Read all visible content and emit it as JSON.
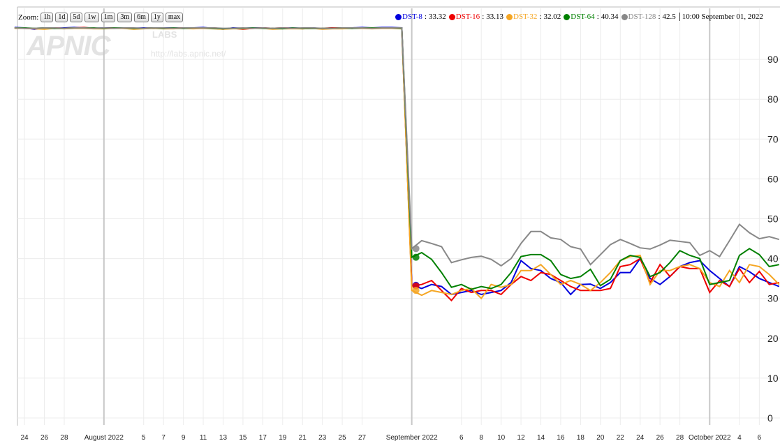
{
  "zoom": {
    "label": "Zoom:",
    "options": [
      "1h",
      "1d",
      "5d",
      "1w",
      "1m",
      "3m",
      "6m",
      "1y",
      "max"
    ]
  },
  "watermark": {
    "logo": "APNIC",
    "sub": "LABS",
    "url": "http://labs.apnic.net/"
  },
  "legend": {
    "separator": ":",
    "time": "10:00 September 01, 2022"
  },
  "chart_data": {
    "type": "line",
    "x": [
      "2022-07-23",
      "2022-07-24",
      "2022-07-25",
      "2022-07-26",
      "2022-07-27",
      "2022-07-28",
      "2022-07-29",
      "2022-07-30",
      "2022-07-31",
      "2022-08-01",
      "2022-08-02",
      "2022-08-03",
      "2022-08-04",
      "2022-08-05",
      "2022-08-06",
      "2022-08-07",
      "2022-08-08",
      "2022-08-09",
      "2022-08-10",
      "2022-08-11",
      "2022-08-12",
      "2022-08-13",
      "2022-08-14",
      "2022-08-15",
      "2022-08-16",
      "2022-08-17",
      "2022-08-18",
      "2022-08-19",
      "2022-08-20",
      "2022-08-21",
      "2022-08-22",
      "2022-08-23",
      "2022-08-24",
      "2022-08-25",
      "2022-08-26",
      "2022-08-27",
      "2022-08-28",
      "2022-08-29",
      "2022-08-30",
      "2022-08-31",
      "2022-09-01",
      "2022-09-02",
      "2022-09-03",
      "2022-09-04",
      "2022-09-05",
      "2022-09-06",
      "2022-09-07",
      "2022-09-08",
      "2022-09-09",
      "2022-09-10",
      "2022-09-11",
      "2022-09-12",
      "2022-09-13",
      "2022-09-14",
      "2022-09-15",
      "2022-09-16",
      "2022-09-17",
      "2022-09-18",
      "2022-09-19",
      "2022-09-20",
      "2022-09-21",
      "2022-09-22",
      "2022-09-23",
      "2022-09-24",
      "2022-09-25",
      "2022-09-26",
      "2022-09-27",
      "2022-09-28",
      "2022-09-29",
      "2022-09-30",
      "2022-10-01",
      "2022-10-02",
      "2022-10-03",
      "2022-10-04",
      "2022-10-05",
      "2022-10-06",
      "2022-10-07",
      "2022-10-08"
    ],
    "series": [
      {
        "name": "DST-8",
        "color": "#0000dd",
        "values": [
          98.0,
          97.9,
          97.6,
          97.9,
          97.8,
          97.9,
          98.0,
          97.9,
          97.8,
          97.9,
          97.9,
          97.8,
          97.8,
          97.9,
          97.8,
          97.9,
          97.9,
          97.8,
          97.9,
          98.0,
          97.8,
          97.6,
          97.9,
          97.8,
          97.9,
          97.9,
          97.7,
          97.8,
          97.9,
          97.8,
          97.9,
          97.7,
          97.9,
          97.8,
          97.9,
          98.0,
          97.9,
          98.0,
          98.0,
          97.9,
          33.32,
          32.5,
          33.5,
          33,
          31,
          31.5,
          32,
          31,
          31.5,
          32,
          34,
          39.5,
          37.5,
          37,
          35,
          34,
          31,
          33.5,
          33.6,
          32.5,
          34,
          36.5,
          36.5,
          40,
          35,
          33.5,
          35.5,
          38,
          39,
          39.5,
          37,
          35,
          33,
          38,
          36.7,
          35,
          34,
          33
        ]
      },
      {
        "name": "DST-16",
        "color": "#ee0000",
        "values": [
          97.9,
          97.8,
          97.7,
          97.8,
          97.9,
          97.8,
          97.9,
          98.0,
          97.8,
          97.8,
          97.9,
          97.9,
          97.7,
          97.8,
          97.9,
          97.8,
          97.8,
          97.9,
          97.8,
          97.9,
          97.9,
          97.7,
          97.8,
          97.6,
          97.8,
          97.9,
          97.8,
          97.9,
          97.8,
          97.7,
          97.8,
          97.8,
          97.9,
          97.9,
          97.8,
          97.9,
          97.8,
          97.9,
          97.9,
          97.8,
          33.13,
          33.5,
          34.5,
          32,
          29.5,
          32.5,
          31.5,
          32,
          32,
          31,
          33.5,
          35.5,
          34.5,
          36.5,
          36,
          34.5,
          33,
          32,
          32,
          32,
          32.5,
          38,
          38.5,
          40,
          34,
          38.5,
          35.5,
          38,
          37.5,
          37.5,
          31.5,
          34.5,
          33,
          37.5,
          34,
          36.8,
          33.5,
          34
        ]
      },
      {
        "name": "DST-32",
        "color": "#f5a623",
        "values": [
          97.8,
          97.8,
          97.7,
          97.6,
          97.8,
          97.7,
          97.8,
          97.8,
          97.7,
          97.7,
          97.8,
          97.8,
          97.6,
          97.7,
          97.8,
          97.7,
          97.7,
          97.8,
          97.7,
          97.8,
          97.7,
          97.6,
          97.7,
          97.7,
          97.8,
          97.8,
          97.6,
          97.7,
          97.7,
          97.7,
          97.8,
          97.6,
          97.7,
          97.7,
          97.8,
          97.8,
          97.7,
          97.8,
          97.8,
          97.7,
          32.02,
          30.8,
          32,
          31.5,
          31,
          32,
          32.5,
          30,
          33.5,
          32.8,
          33.5,
          37,
          37,
          38.5,
          36,
          33.5,
          34.5,
          33.5,
          32,
          34,
          36.5,
          39.5,
          40.5,
          40.8,
          33.5,
          37,
          37,
          38,
          38.5,
          37.5,
          34,
          33,
          37,
          34,
          38.5,
          38,
          36,
          33.5
        ]
      },
      {
        "name": "DST-64",
        "color": "#008000",
        "values": [
          97.9,
          97.9,
          97.8,
          97.9,
          97.8,
          97.8,
          97.9,
          97.9,
          97.9,
          97.8,
          97.9,
          97.9,
          97.8,
          97.8,
          97.9,
          97.8,
          97.9,
          97.8,
          97.9,
          97.9,
          97.8,
          97.7,
          97.8,
          97.8,
          97.9,
          97.8,
          97.8,
          97.7,
          97.9,
          97.8,
          97.8,
          97.8,
          97.8,
          97.9,
          97.8,
          97.9,
          97.9,
          97.9,
          97.9,
          97.8,
          40.34,
          41.5,
          39.8,
          36.5,
          32.8,
          33.5,
          32.3,
          33,
          32.5,
          33.5,
          36.5,
          40.5,
          41,
          41,
          39.5,
          36,
          35,
          35.5,
          37.3,
          33.2,
          34.8,
          39.5,
          40.8,
          40.3,
          35.5,
          36.5,
          39,
          42,
          40.8,
          40,
          33.5,
          34,
          34.5,
          40.8,
          42.5,
          41,
          38,
          38.5
        ]
      },
      {
        "name": "DST-128",
        "color": "#888888",
        "values": [
          97.9,
          97.8,
          97.8,
          97.9,
          97.9,
          97.8,
          97.9,
          97.9,
          97.8,
          97.9,
          97.8,
          97.9,
          97.9,
          97.8,
          97.9,
          97.9,
          97.8,
          97.9,
          97.9,
          97.9,
          97.9,
          97.8,
          97.8,
          97.9,
          97.8,
          97.9,
          97.8,
          97.9,
          97.8,
          97.9,
          97.9,
          97.8,
          97.8,
          97.9,
          97.9,
          97.9,
          97.8,
          97.9,
          97.9,
          97.9,
          42.5,
          44.5,
          43.8,
          43,
          39,
          39.7,
          40.3,
          40.6,
          39.8,
          38.2,
          40,
          43.8,
          46.8,
          46.8,
          45.2,
          44.8,
          43,
          42.4,
          38.5,
          41,
          43.5,
          44.8,
          43.8,
          42.7,
          42.4,
          43.4,
          44.6,
          44.3,
          44,
          40.8,
          42,
          40.5,
          44.5,
          48.6,
          46.5,
          45,
          45.5,
          44.8
        ]
      }
    ],
    "highlight": "2022-09-01",
    "xlim": [
      "2022-07-23T07:00",
      "2022-10-08T02:00"
    ],
    "xticks": [
      {
        "value": "2022-07-24",
        "label": "24"
      },
      {
        "value": "2022-07-26",
        "label": "26"
      },
      {
        "value": "2022-07-28",
        "label": "28"
      },
      {
        "value": "2022-08-01",
        "label": "August 2022"
      },
      {
        "value": "2022-08-05",
        "label": "5"
      },
      {
        "value": "2022-08-07",
        "label": "7"
      },
      {
        "value": "2022-08-09",
        "label": "9"
      },
      {
        "value": "2022-08-11",
        "label": "11"
      },
      {
        "value": "2022-08-13",
        "label": "13"
      },
      {
        "value": "2022-08-15",
        "label": "15"
      },
      {
        "value": "2022-08-17",
        "label": "17"
      },
      {
        "value": "2022-08-19",
        "label": "19"
      },
      {
        "value": "2022-08-21",
        "label": "21"
      },
      {
        "value": "2022-08-23",
        "label": "23"
      },
      {
        "value": "2022-08-25",
        "label": "25"
      },
      {
        "value": "2022-08-27",
        "label": "27"
      },
      {
        "value": "2022-09-01",
        "label": "September 2022"
      },
      {
        "value": "2022-09-06",
        "label": "6"
      },
      {
        "value": "2022-09-08",
        "label": "8"
      },
      {
        "value": "2022-09-10",
        "label": "10"
      },
      {
        "value": "2022-09-12",
        "label": "12"
      },
      {
        "value": "2022-09-14",
        "label": "14"
      },
      {
        "value": "2022-09-16",
        "label": "16"
      },
      {
        "value": "2022-09-18",
        "label": "18"
      },
      {
        "value": "2022-09-20",
        "label": "20"
      },
      {
        "value": "2022-09-22",
        "label": "22"
      },
      {
        "value": "2022-09-24",
        "label": "24"
      },
      {
        "value": "2022-09-26",
        "label": "26"
      },
      {
        "value": "2022-09-28",
        "label": "28"
      },
      {
        "value": "2022-10-01",
        "label": "October 2022"
      },
      {
        "value": "2022-10-04",
        "label": "4"
      },
      {
        "value": "2022-10-06",
        "label": "6"
      }
    ],
    "ylim": [
      0,
      100
    ],
    "yticks": [
      0,
      10,
      20,
      30,
      40,
      50,
      60,
      70,
      80,
      90
    ],
    "grid": true
  }
}
